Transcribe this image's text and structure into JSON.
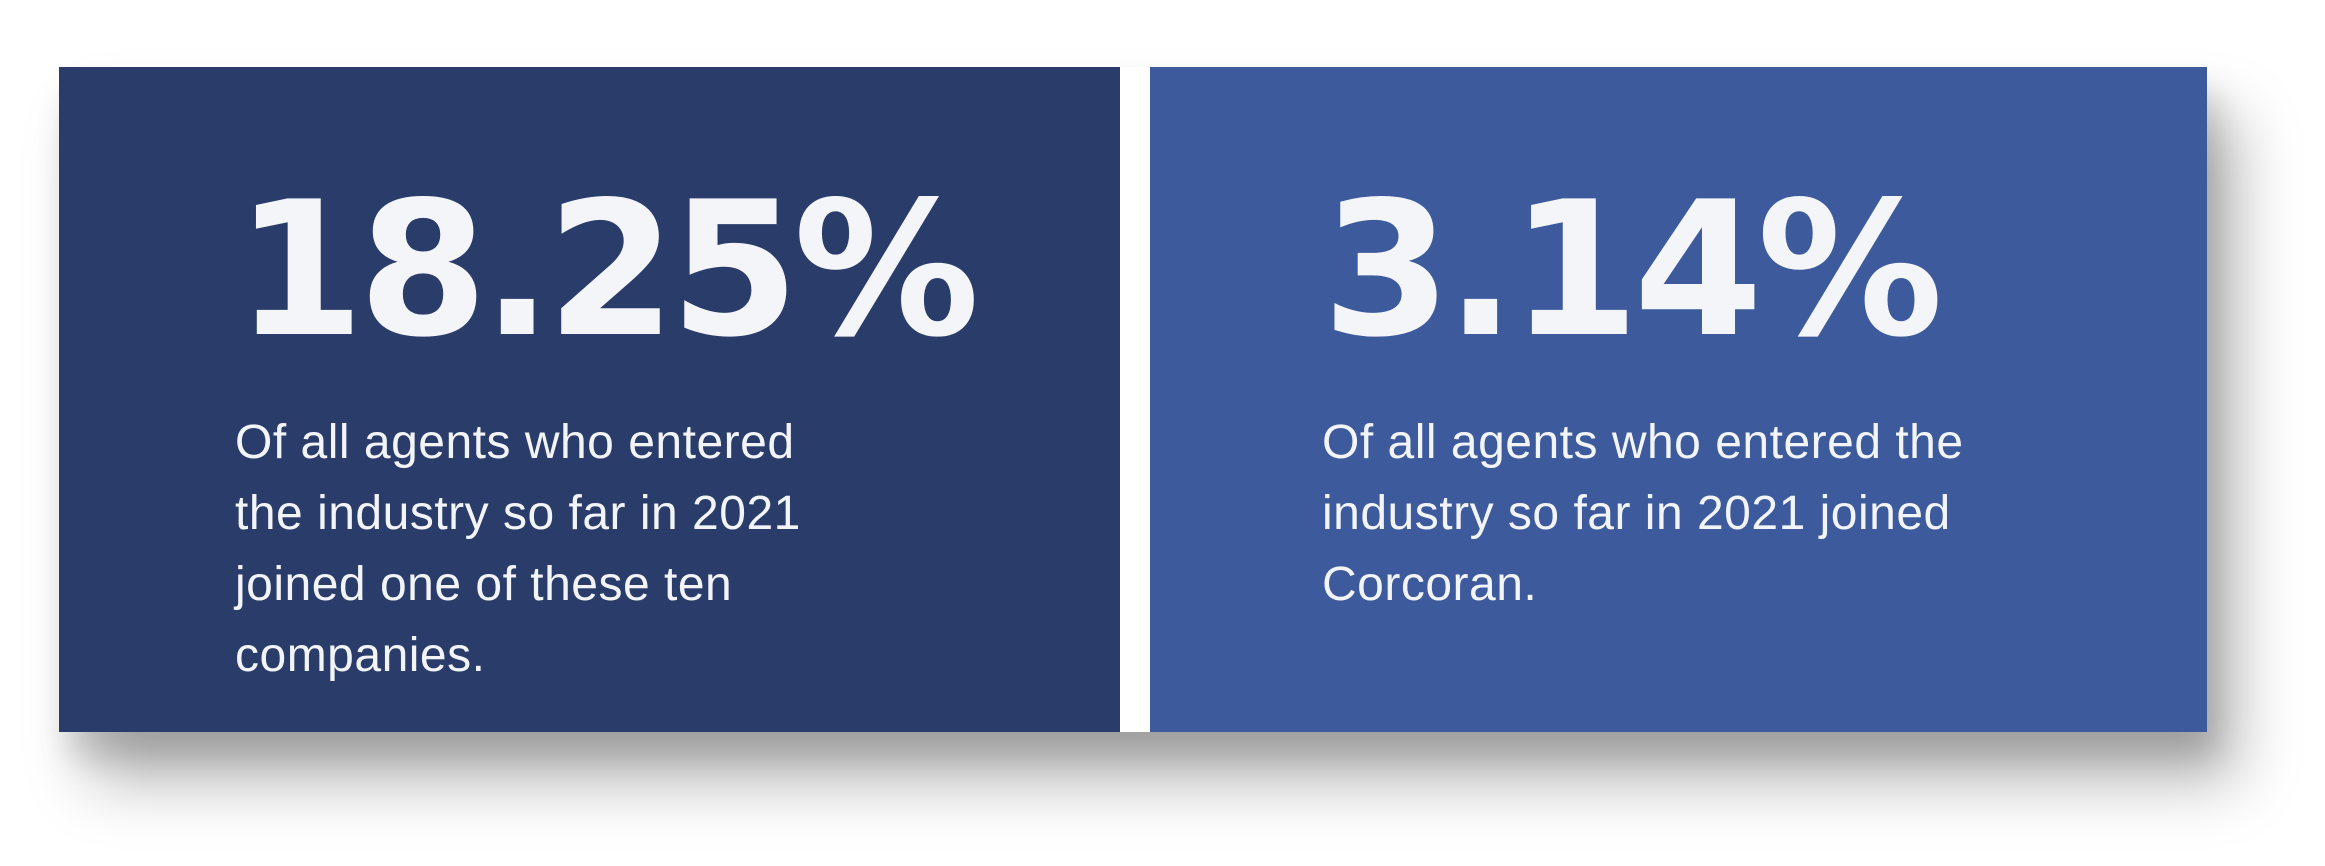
{
  "colors": {
    "background": "#ffffff",
    "left_card": "#2a3c6a",
    "right_card": "#3c5a9c",
    "text": "#f3f4f8"
  },
  "cards": [
    {
      "value": "18.25%",
      "lines": [
        "Of all agents who entered",
        "the industry so far in 2021",
        "joined one of these ten",
        "companies."
      ]
    },
    {
      "value": "3.14%",
      "lines": [
        "Of all agents who entered the",
        "industry so far in 2021 joined",
        "Corcoran."
      ]
    }
  ]
}
